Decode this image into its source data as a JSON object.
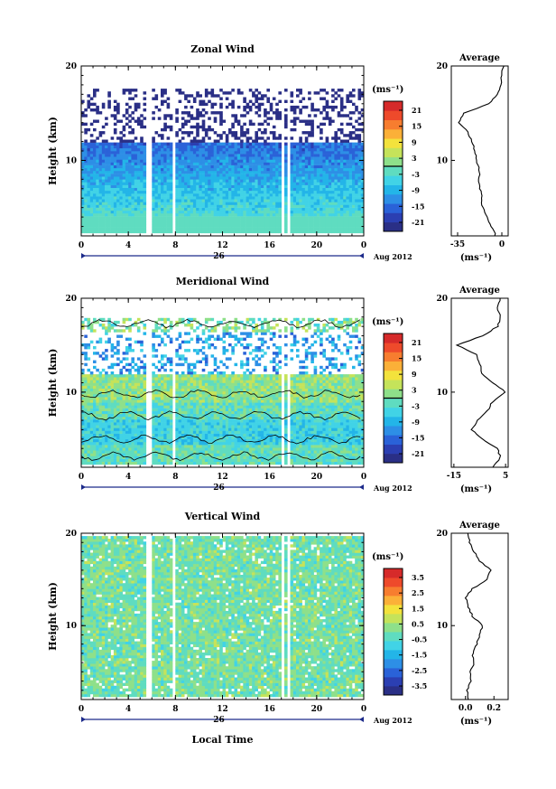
{
  "figure": {
    "date_label": "Aug 2012",
    "day_label": "26",
    "x_axis_label": "Local Time"
  },
  "chart_data": [
    {
      "type": "heatmap",
      "title": "Zonal Wind",
      "ylabel": "Height (km)",
      "xlabel": "",
      "xlim": [
        0,
        24
      ],
      "x_ticks": [
        "0",
        "4",
        "8",
        "12",
        "16",
        "20",
        "0"
      ],
      "ylim": [
        2,
        20
      ],
      "y_ticks": [
        "10",
        "20"
      ],
      "grid": false,
      "colorbar": {
        "unit": "(ms⁻¹)",
        "ticks": [
          "21",
          "15",
          "9",
          "3",
          "-3",
          "-9",
          "-15",
          "-21"
        ],
        "colors": [
          "#2a2f86",
          "#2b3fb2",
          "#2a62d8",
          "#2d8fe6",
          "#23b5e8",
          "#41d3e6",
          "#5fdcc0",
          "#8ee08a",
          "#c5e35a",
          "#f3e23c",
          "#fbb038",
          "#f77d2f",
          "#ee4a2b",
          "#d62a2a"
        ]
      },
      "profile": {
        "title": "Average",
        "xlabel": "(ms⁻¹)",
        "x_ticks": [
          "-35",
          "0"
        ],
        "xlim": [
          -40,
          5
        ],
        "y_ticks": [
          "10",
          "20"
        ],
        "heights": [
          2,
          3,
          4,
          5,
          6,
          7,
          8,
          9,
          10,
          11,
          12,
          13,
          14,
          15,
          16,
          17,
          18,
          19,
          20
        ],
        "values": [
          -5,
          -8,
          -12,
          -15,
          -16,
          -17,
          -18,
          -18,
          -20,
          -21,
          -24,
          -27,
          -34,
          -30,
          -10,
          -3,
          -1,
          0,
          1
        ]
      }
    },
    {
      "type": "heatmap",
      "title": "Meridional Wind",
      "ylabel": "Height (km)",
      "xlabel": "",
      "xlim": [
        0,
        24
      ],
      "x_ticks": [
        "0",
        "4",
        "8",
        "12",
        "16",
        "20",
        "0"
      ],
      "ylim": [
        2,
        20
      ],
      "y_ticks": [
        "10",
        "20"
      ],
      "grid": false,
      "colorbar": {
        "unit": "(ms⁻¹)",
        "ticks": [
          "21",
          "15",
          "9",
          "3",
          "-3",
          "-9",
          "-15",
          "-21"
        ],
        "colors": [
          "#2a2f86",
          "#2b3fb2",
          "#2a62d8",
          "#2d8fe6",
          "#23b5e8",
          "#41d3e6",
          "#5fdcc0",
          "#8ee08a",
          "#c5e35a",
          "#f3e23c",
          "#fbb038",
          "#f77d2f",
          "#ee4a2b",
          "#d62a2a"
        ]
      },
      "profile": {
        "title": "Average",
        "xlabel": "(ms⁻¹)",
        "x_ticks": [
          "-15",
          "5"
        ],
        "xlim": [
          -16,
          6
        ],
        "y_ticks": [
          "10",
          "20"
        ],
        "heights": [
          2,
          3,
          4,
          5,
          6,
          7,
          8,
          9,
          10,
          11,
          12,
          13,
          14,
          15,
          16,
          17,
          18,
          19,
          20
        ],
        "values": [
          0,
          3,
          2,
          -4,
          -8,
          -6,
          -2,
          0,
          5,
          0,
          -4,
          -5,
          -6,
          -14,
          -4,
          2,
          3,
          2,
          3
        ]
      }
    },
    {
      "type": "heatmap",
      "title": "Vertical Wind",
      "ylabel": "Height (km)",
      "xlabel": "Local Time",
      "xlim": [
        0,
        24
      ],
      "x_ticks": [
        "0",
        "4",
        "8",
        "12",
        "16",
        "20",
        "0"
      ],
      "ylim": [
        2,
        20
      ],
      "y_ticks": [
        "10",
        "20"
      ],
      "grid": false,
      "colorbar": {
        "unit": "(ms⁻¹)",
        "ticks": [
          "3.5",
          "2.5",
          "1.5",
          "0.5",
          "-0.5",
          "-1.5",
          "-2.5",
          "-3.5"
        ],
        "colors": [
          "#2a2f86",
          "#2b3fb2",
          "#2a62d8",
          "#2d8fe6",
          "#23b5e8",
          "#41d3e6",
          "#5fdcc0",
          "#8ee08a",
          "#c5e35a",
          "#f3e23c",
          "#fbb038",
          "#f77d2f",
          "#ee4a2b",
          "#d62a2a"
        ]
      },
      "profile": {
        "title": "Average",
        "xlabel": "(ms⁻¹)",
        "x_ticks": [
          "0.0",
          "0.2"
        ],
        "xlim": [
          -0.1,
          0.3
        ],
        "y_ticks": [
          "10",
          "20"
        ],
        "heights": [
          2,
          3,
          4,
          5,
          6,
          7,
          8,
          9,
          10,
          11,
          12,
          13,
          14,
          15,
          16,
          17,
          18,
          19,
          20
        ],
        "values": [
          0.02,
          0.01,
          0.04,
          0.03,
          0.06,
          0.05,
          0.08,
          0.1,
          0.12,
          0.05,
          0.02,
          0.0,
          0.05,
          0.15,
          0.18,
          0.1,
          0.06,
          0.03,
          0.01
        ]
      }
    }
  ]
}
